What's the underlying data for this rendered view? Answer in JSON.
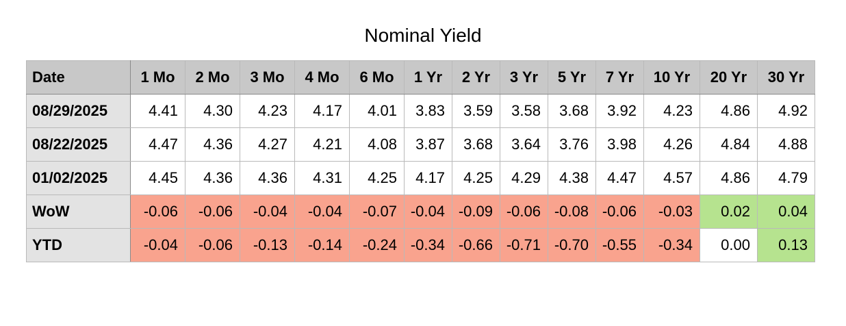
{
  "chart_data": {
    "type": "table",
    "title": "Nominal Yield",
    "columns": [
      "Date",
      "1 Mo",
      "2 Mo",
      "3 Mo",
      "4 Mo",
      "6 Mo",
      "1 Yr",
      "2 Yr",
      "3 Yr",
      "5 Yr",
      "7 Yr",
      "10 Yr",
      "20 Yr",
      "30 Yr"
    ],
    "rows": [
      {
        "label": "08/29/2025",
        "values": [
          "4.41",
          "4.30",
          "4.23",
          "4.17",
          "4.01",
          "3.83",
          "3.59",
          "3.58",
          "3.68",
          "3.92",
          "4.23",
          "4.86",
          "4.92"
        ]
      },
      {
        "label": "08/22/2025",
        "values": [
          "4.47",
          "4.36",
          "4.27",
          "4.21",
          "4.08",
          "3.87",
          "3.68",
          "3.64",
          "3.76",
          "3.98",
          "4.26",
          "4.84",
          "4.88"
        ]
      },
      {
        "label": "01/02/2025",
        "values": [
          "4.45",
          "4.36",
          "4.36",
          "4.31",
          "4.25",
          "4.17",
          "4.25",
          "4.29",
          "4.38",
          "4.47",
          "4.57",
          "4.86",
          "4.79"
        ]
      },
      {
        "label": "WoW",
        "values": [
          "-0.06",
          "-0.06",
          "-0.04",
          "-0.04",
          "-0.07",
          "-0.04",
          "-0.09",
          "-0.06",
          "-0.08",
          "-0.06",
          "-0.03",
          "0.02",
          "0.04"
        ]
      },
      {
        "label": "YTD",
        "values": [
          "-0.04",
          "-0.06",
          "-0.13",
          "-0.14",
          "-0.24",
          "-0.34",
          "-0.66",
          "-0.71",
          "-0.70",
          "-0.55",
          "-0.34",
          "0.00",
          "0.13"
        ]
      }
    ],
    "colors": {
      "negative": "#f9a38e",
      "positive": "#b6e38f",
      "zero": "#ffffff",
      "neutral": "#ffffff"
    }
  }
}
